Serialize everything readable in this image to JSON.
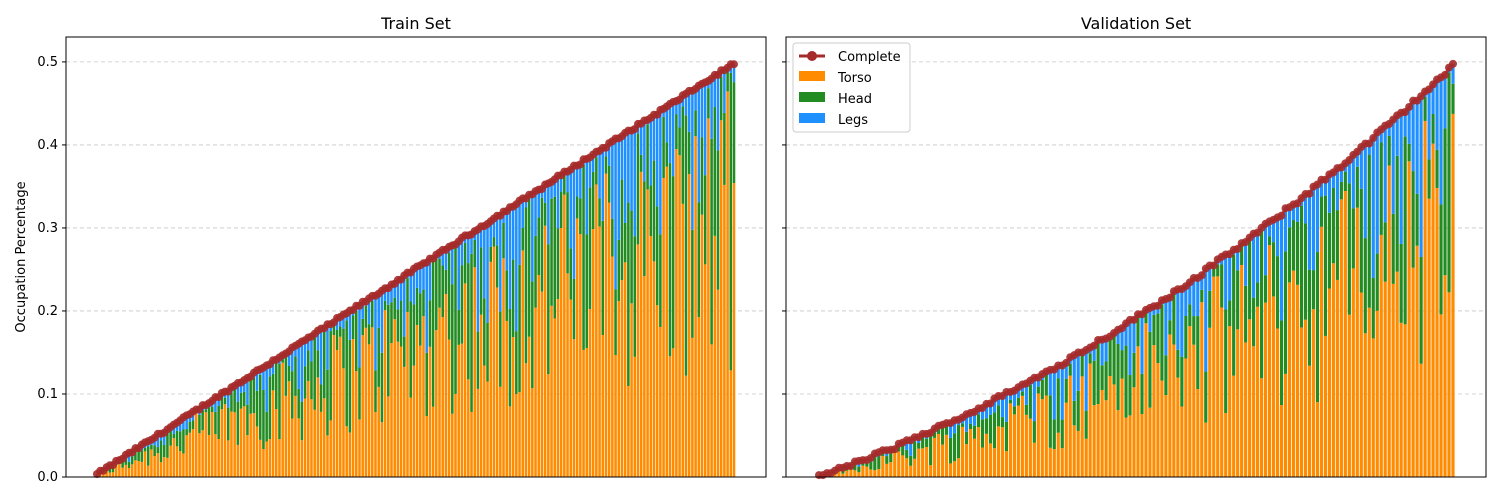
{
  "chart_data": [
    {
      "type": "bar",
      "title": "Train Set",
      "xlabel": "",
      "ylabel": "Occupation Percentage",
      "ylim": [
        0,
        0.53
      ],
      "yticks": [
        "0.0",
        "0.1",
        "0.2",
        "0.3",
        "0.4",
        "0.5"
      ],
      "grid": true,
      "bar_count": 200,
      "complete_range": [
        0.003,
        0.498
      ],
      "series": [
        {
          "name": "Torso",
          "color": "#ff8c00"
        },
        {
          "name": "Head",
          "color": "#228b22"
        },
        {
          "name": "Legs",
          "color": "#1e90ff"
        },
        {
          "name": "Complete",
          "color": "#a52a2a"
        }
      ]
    },
    {
      "type": "bar",
      "title": "Validation Set",
      "xlabel": "",
      "ylabel": "",
      "ylim": [
        0,
        0.53
      ],
      "grid": true,
      "bar_count": 160,
      "complete_range": [
        0.0,
        0.495
      ],
      "legend_position": "upper-left",
      "series": [
        {
          "name": "Complete",
          "color": "#a52a2a"
        },
        {
          "name": "Torso",
          "color": "#ff8c00"
        },
        {
          "name": "Head",
          "color": "#228b22"
        },
        {
          "name": "Legs",
          "color": "#1e90ff"
        }
      ]
    }
  ]
}
